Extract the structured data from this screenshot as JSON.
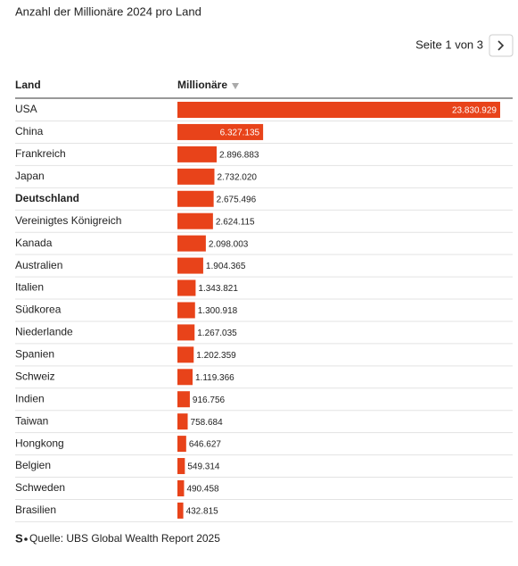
{
  "chart_data": {
    "type": "bar",
    "orientation": "horizontal",
    "title": "Anzahl der Millionäre 2024 pro Land",
    "pager": "Seite 1 von 3",
    "column_headers": [
      "Land",
      "Millionäre"
    ],
    "categories": [
      "USA",
      "China",
      "Frankreich",
      "Japan",
      "Deutschland",
      "Vereinigtes Königreich",
      "Kanada",
      "Australien",
      "Italien",
      "Südkorea",
      "Niederlande",
      "Spanien",
      "Schweiz",
      "Indien",
      "Taiwan",
      "Hongkong",
      "Belgien",
      "Schweden",
      "Brasilien"
    ],
    "values": [
      23830929,
      6327135,
      2896883,
      2732020,
      2675496,
      2624115,
      2098003,
      1904365,
      1343821,
      1300918,
      1267035,
      1202359,
      1119366,
      916756,
      758684,
      646627,
      549314,
      490458,
      432815
    ],
    "value_labels": [
      "23.830.929",
      "6.327.135",
      "2.896.883",
      "2.732.020",
      "2.675.496",
      "2.624.115",
      "2.098.003",
      "1.904.365",
      "1.343.821",
      "1.300.918",
      "1.267.035",
      "1.202.359",
      "1.119.366",
      "916.756",
      "758.684",
      "646.627",
      "549.314",
      "490.458",
      "432.815"
    ],
    "color": "#e8431a",
    "bold_category": "Deutschland",
    "logo": "S",
    "source": "Quelle: UBS Global Wealth Report 2025"
  }
}
